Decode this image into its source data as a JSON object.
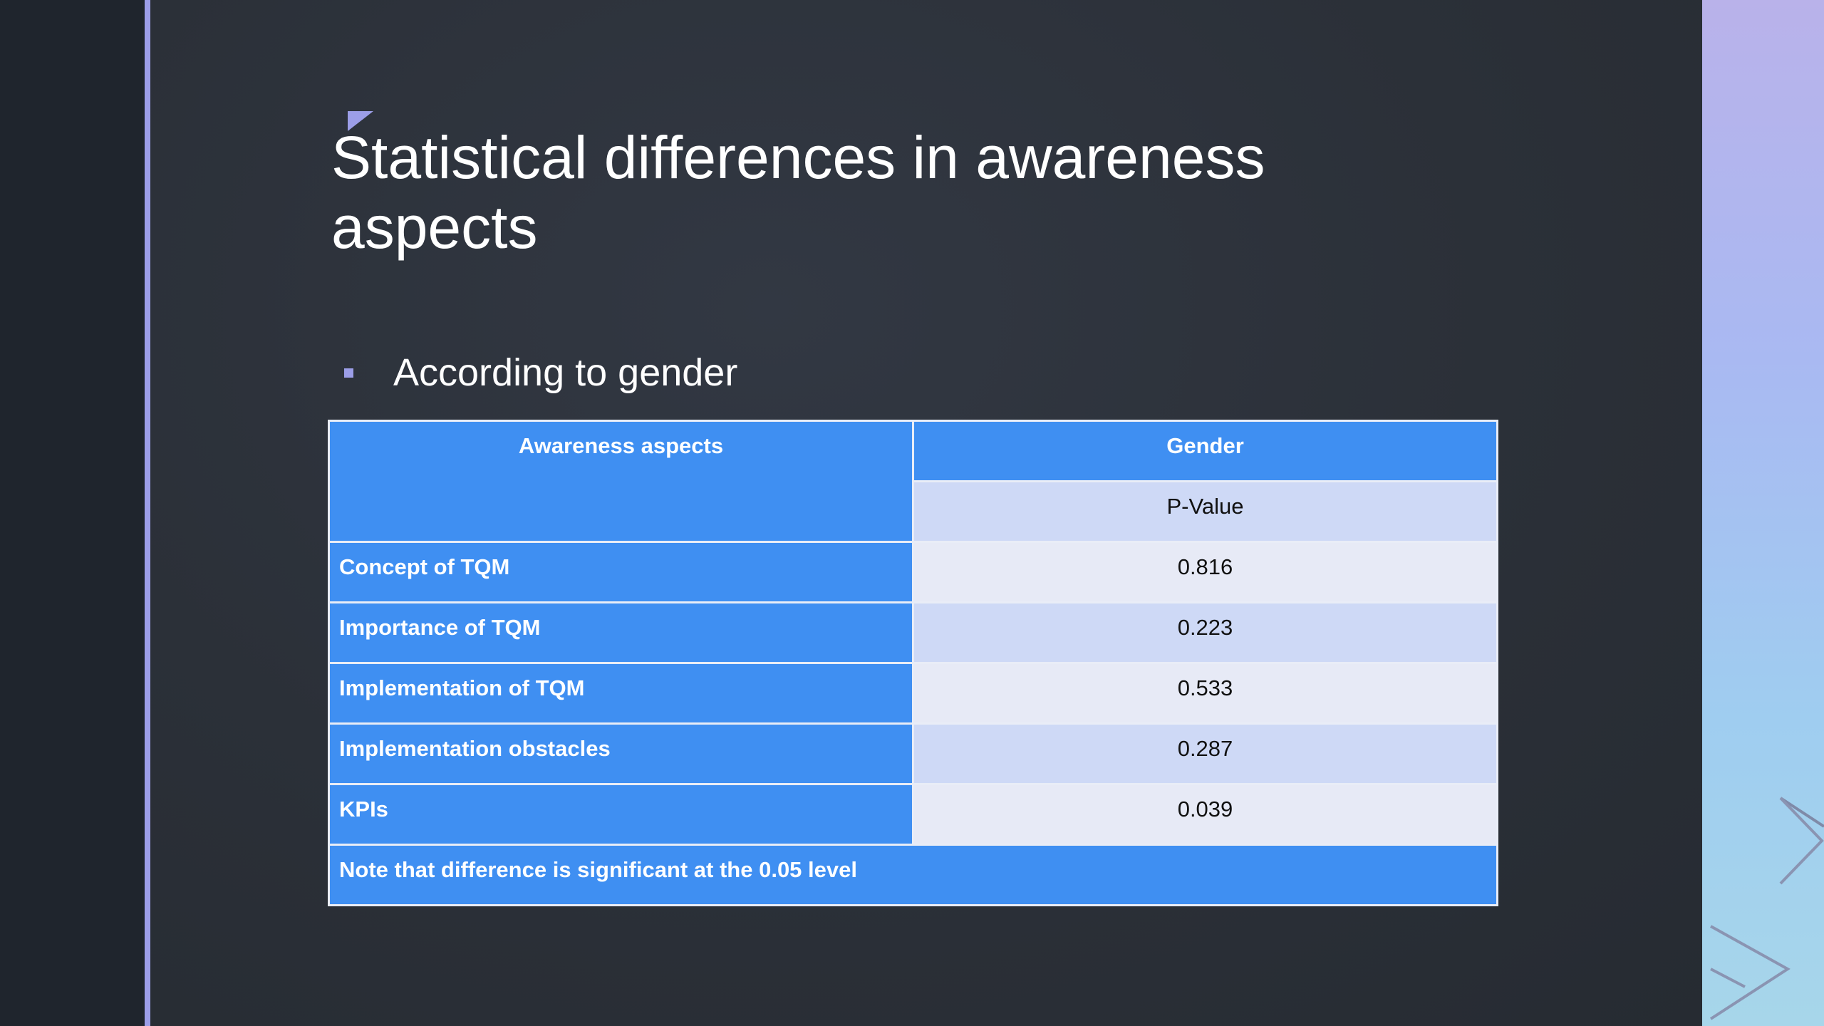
{
  "slide": {
    "title": "Statistical differences in awareness aspects",
    "bullet": "According to gender"
  },
  "table": {
    "header_aspects": "Awareness aspects",
    "header_group": "Gender",
    "header_sub": "P-Value",
    "rows": [
      {
        "label": "Concept of TQM",
        "value": "0.816"
      },
      {
        "label": "Importance of TQM",
        "value": "0.223"
      },
      {
        "label": "Implementation of TQM",
        "value": "0.533"
      },
      {
        "label": "Implementation obstacles",
        "value": "0.287"
      },
      {
        "label": "KPIs",
        "value": "0.039"
      }
    ],
    "note": "Note that difference is significant at the 0.05 level"
  },
  "colors": {
    "accent": "#9c9ee8",
    "table_header": "#3f8ff2",
    "row_light": "#e7eaf6",
    "row_mid": "#ced9f6",
    "background": "#2c3139"
  },
  "icons": {
    "bullet": "square-bullet-icon",
    "corner": "corner-triangle-icon",
    "decor": "chevron-right-icon"
  }
}
